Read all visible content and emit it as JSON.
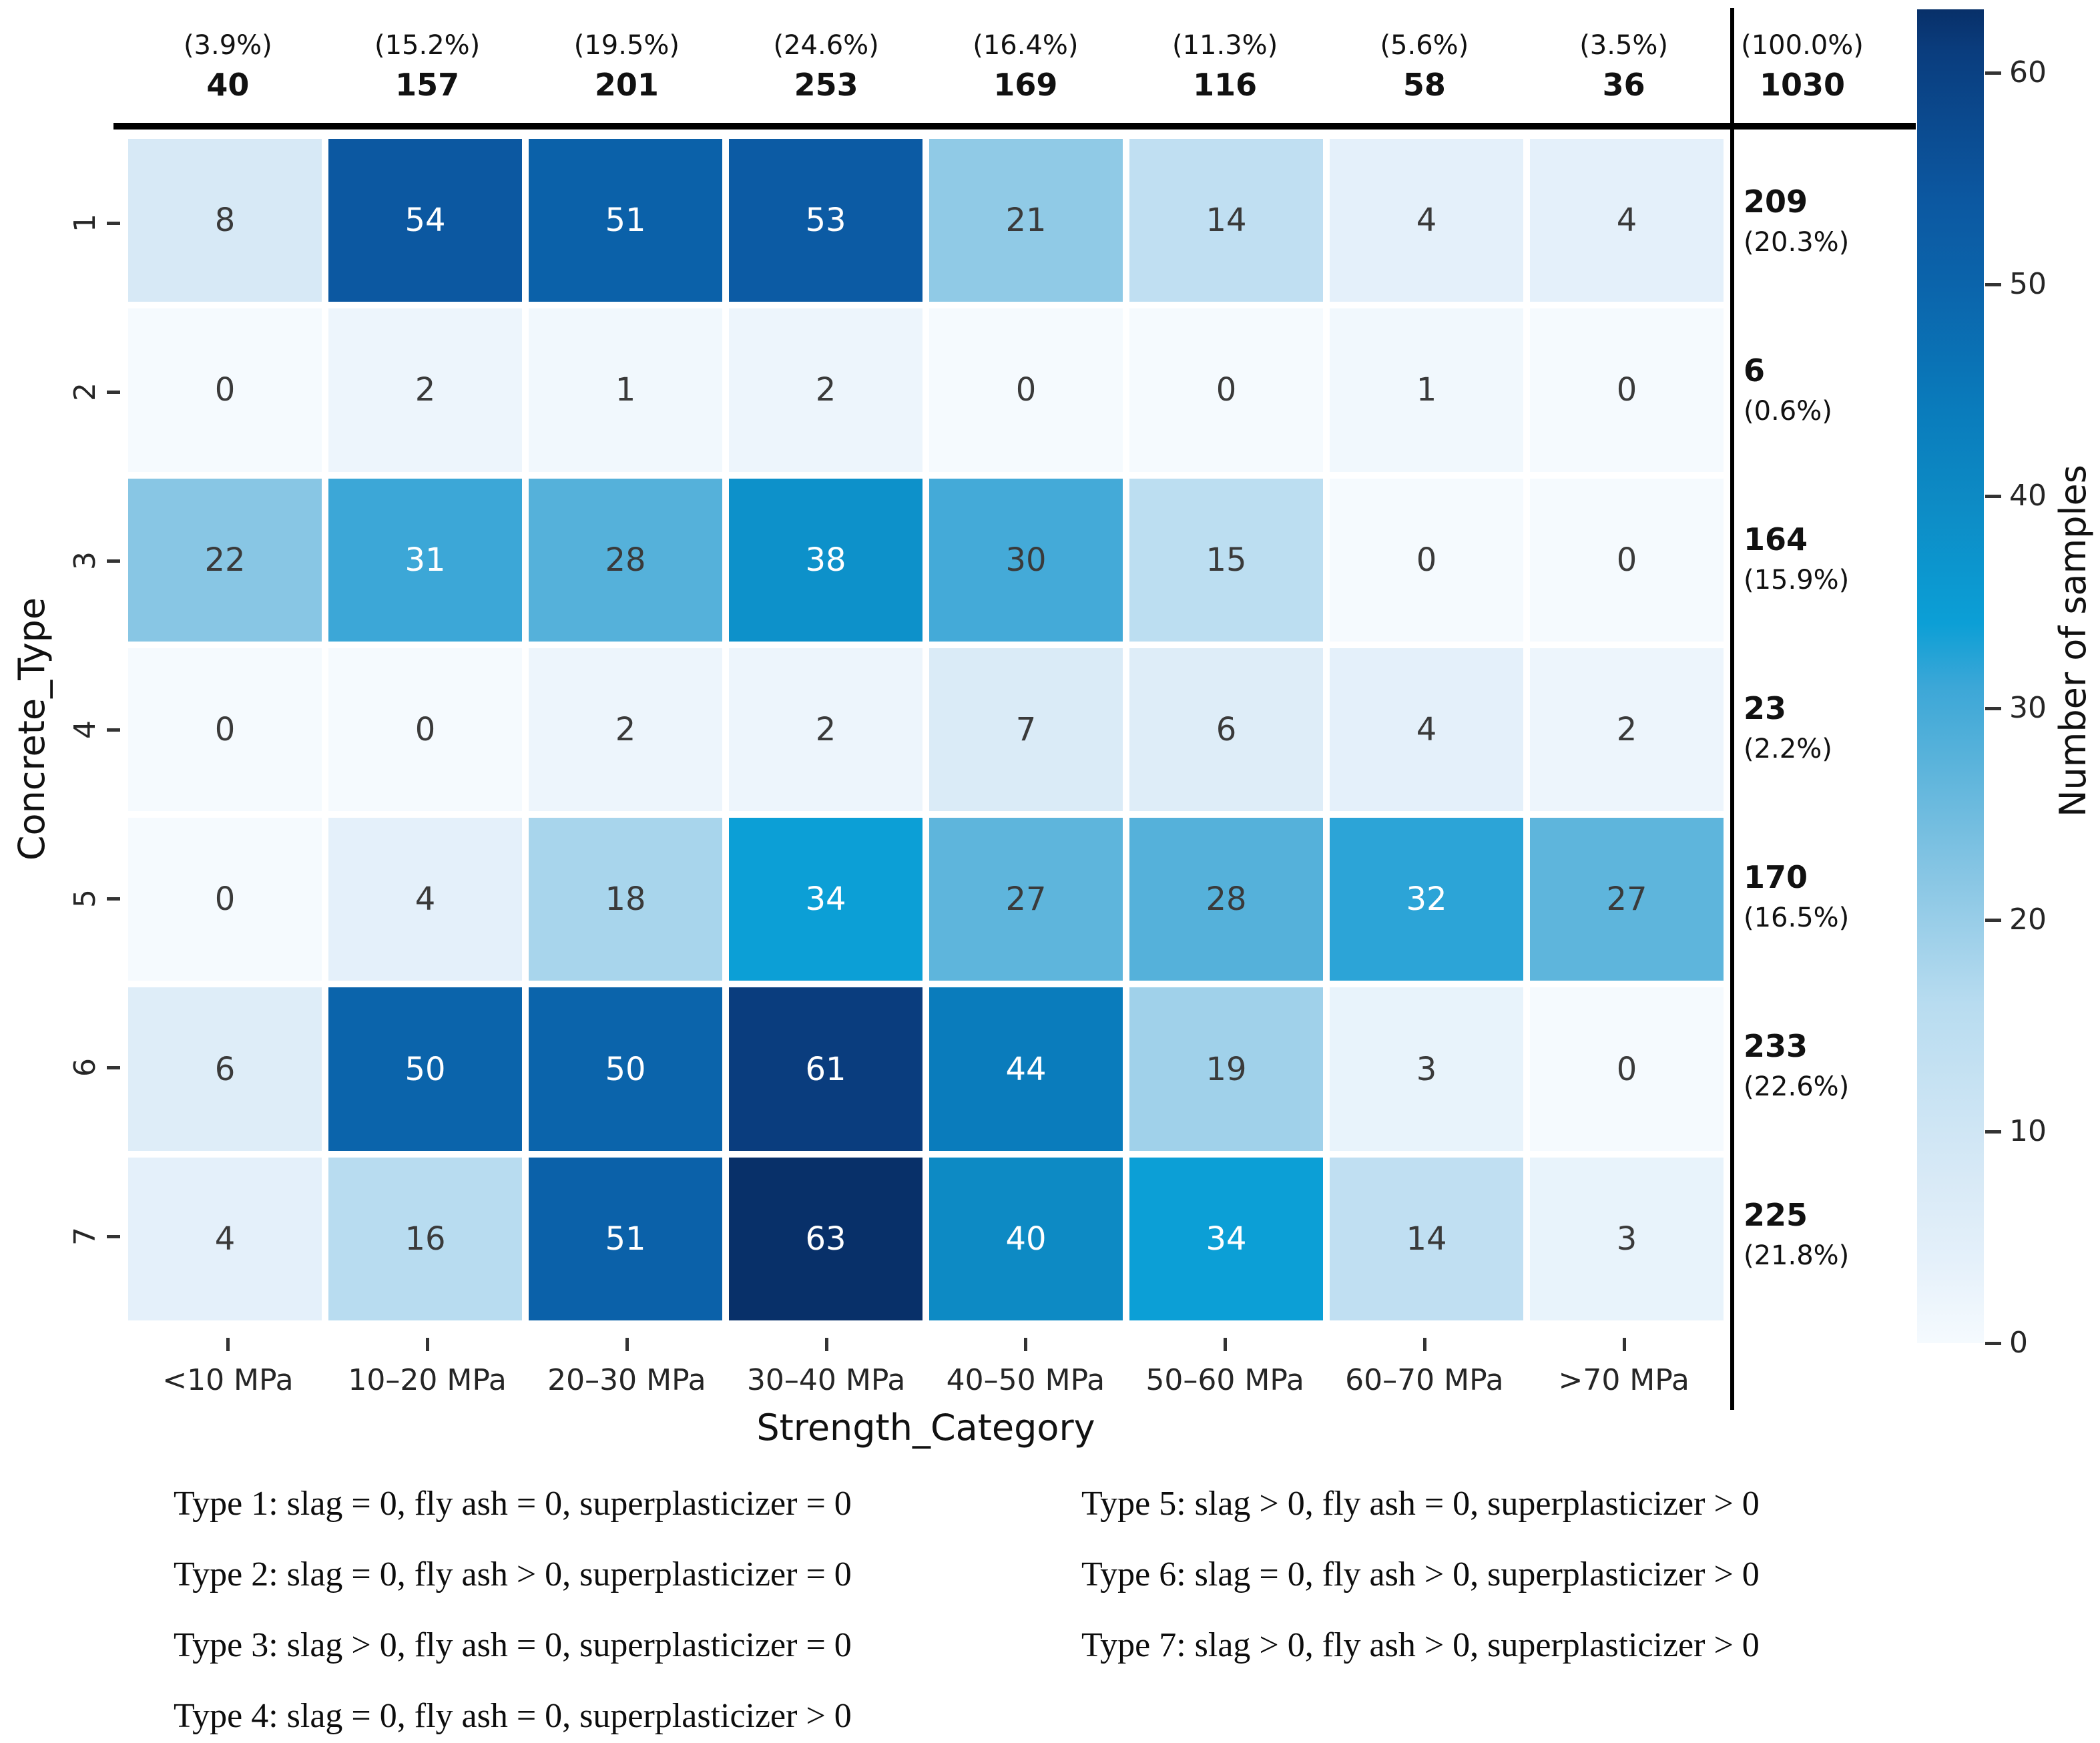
{
  "chart_data": {
    "type": "heatmap",
    "xlabel": "Strength_Category",
    "ylabel": "Concrete_Type",
    "x_categories": [
      "<10 MPa",
      "10–20 MPa",
      "20–30 MPa",
      "30–40 MPa",
      "40–50 MPa",
      "50–60 MPa",
      "60–70 MPa",
      ">70 MPa"
    ],
    "y_categories": [
      "1",
      "2",
      "3",
      "4",
      "5",
      "6",
      "7"
    ],
    "values": [
      [
        8,
        54,
        51,
        53,
        21,
        14,
        4,
        4
      ],
      [
        0,
        2,
        1,
        2,
        0,
        0,
        1,
        0
      ],
      [
        22,
        31,
        28,
        38,
        30,
        15,
        0,
        0
      ],
      [
        0,
        0,
        2,
        2,
        7,
        6,
        4,
        2
      ],
      [
        0,
        4,
        18,
        34,
        27,
        28,
        32,
        27
      ],
      [
        6,
        50,
        50,
        61,
        44,
        19,
        3,
        0
      ],
      [
        4,
        16,
        51,
        63,
        40,
        34,
        14,
        3
      ]
    ],
    "col_totals": [
      {
        "pct": "(3.9%)",
        "count": "40"
      },
      {
        "pct": "(15.2%)",
        "count": "157"
      },
      {
        "pct": "(19.5%)",
        "count": "201"
      },
      {
        "pct": "(24.6%)",
        "count": "253"
      },
      {
        "pct": "(16.4%)",
        "count": "169"
      },
      {
        "pct": "(11.3%)",
        "count": "116"
      },
      {
        "pct": "(5.6%)",
        "count": "58"
      },
      {
        "pct": "(3.5%)",
        "count": "36"
      }
    ],
    "grand_total": {
      "pct": "(100.0%)",
      "count": "1030"
    },
    "row_totals": [
      {
        "count": "209",
        "pct": "(20.3%)"
      },
      {
        "count": "6",
        "pct": "(0.6%)"
      },
      {
        "count": "164",
        "pct": "(15.9%)"
      },
      {
        "count": "23",
        "pct": "(2.2%)"
      },
      {
        "count": "170",
        "pct": "(16.5%)"
      },
      {
        "count": "233",
        "pct": "(22.6%)"
      },
      {
        "count": "225",
        "pct": "(21.8%)"
      }
    ],
    "colorbar_label": "Number of samples",
    "colorbar_ticks": [
      60,
      50,
      40,
      30,
      20,
      10,
      0
    ],
    "vmax": 63,
    "white_text_threshold": 31,
    "colormap_stops": [
      [
        0,
        "#f5fafe"
      ],
      [
        4,
        "#e4f0fa"
      ],
      [
        8,
        "#d7e9f6"
      ],
      [
        16,
        "#b8dcf0"
      ],
      [
        22,
        "#88c6e4"
      ],
      [
        28,
        "#55b1da"
      ],
      [
        31,
        "#3ca7d7"
      ],
      [
        34,
        "#0c9fd6"
      ],
      [
        40,
        "#0d8ac4"
      ],
      [
        44,
        "#0a7cbc"
      ],
      [
        50,
        "#0b64ab"
      ],
      [
        54,
        "#0c58a1"
      ],
      [
        61,
        "#0a3d7e"
      ],
      [
        63,
        "#083069"
      ]
    ],
    "grid": "off",
    "legend_position": "below"
  },
  "legend": {
    "left": [
      "Type 1: slag = 0, fly ash = 0, superplasticizer = 0",
      "Type 2: slag = 0, fly ash > 0, superplasticizer = 0",
      "Type 3: slag > 0, fly ash = 0, superplasticizer = 0",
      "Type 4: slag = 0, fly ash = 0, superplasticizer > 0"
    ],
    "right": [
      "Type 5: slag > 0, fly ash = 0, superplasticizer > 0",
      "Type 6: slag = 0, fly ash > 0, superplasticizer > 0",
      "Type 7: slag > 0, fly ash > 0, superplasticizer > 0"
    ]
  }
}
